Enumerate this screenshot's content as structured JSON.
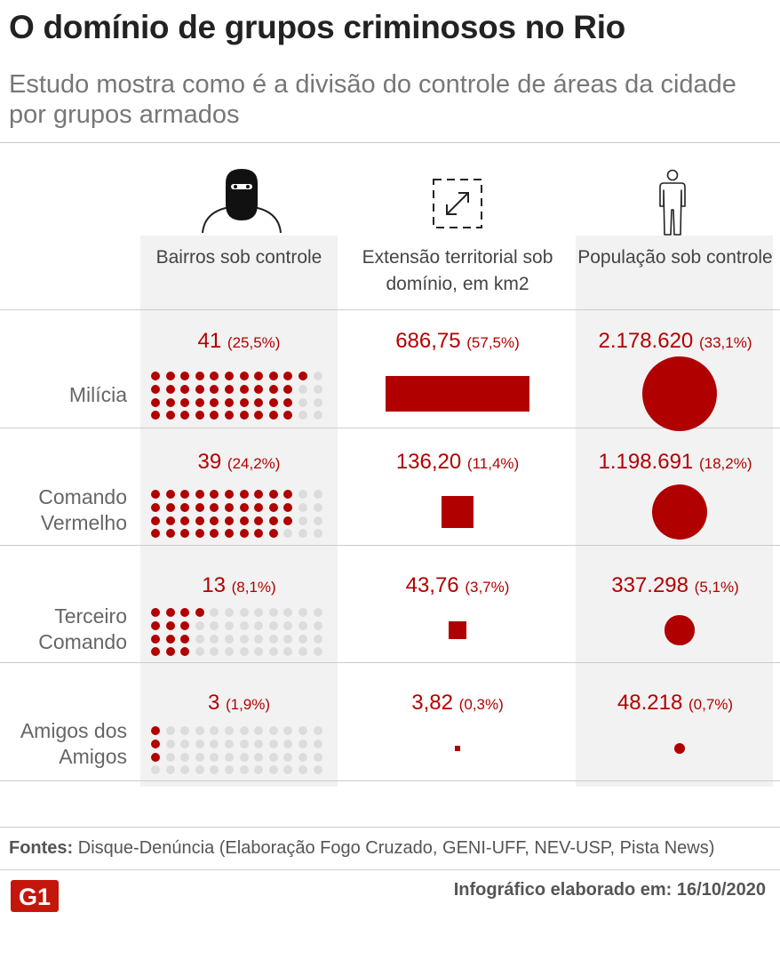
{
  "header": {
    "title": "O domínio de grupos criminosos no Rio",
    "subtitle": "Estudo mostra como é a divisão do controle de áreas da cidade por grupos armados"
  },
  "columns": [
    {
      "icon": "masked-person-icon",
      "label": "Bairros sob controle"
    },
    {
      "icon": "expand-area-icon",
      "label": "Extensão territorial sob domínio, em km2"
    },
    {
      "icon": "person-icon",
      "label": "População sob controle"
    }
  ],
  "colors": {
    "accent": "#b00000",
    "dot_inactive": "#dcdcdc",
    "column_bg": "#f2f2f2"
  },
  "chart_data": {
    "type": "table",
    "title": "O domínio de grupos criminosos no Rio",
    "subtitle": "Estudo mostra como é a divisão do controle de áreas da cidade por grupos armados",
    "dots_total": 48,
    "rows": [
      {
        "name": "Milícia",
        "bairros": 41,
        "bairros_pct": "(25,5%)",
        "km2": 686.75,
        "km2_label": "686,75",
        "km2_pct": "(57,5%)",
        "populacao": 2178620,
        "populacao_label": "2.178.620",
        "populacao_pct": "(33,1%)"
      },
      {
        "name": "Comando Vermelho",
        "bairros": 39,
        "bairros_pct": "(24,2%)",
        "km2": 136.2,
        "km2_label": "136,20",
        "km2_pct": "(11,4%)",
        "populacao": 1198691,
        "populacao_label": "1.198.691",
        "populacao_pct": "(18,2%)"
      },
      {
        "name": "Terceiro Comando",
        "bairros": 13,
        "bairros_pct": "(8,1%)",
        "km2": 43.76,
        "km2_label": "43,76",
        "km2_pct": "(3,7%)",
        "populacao": 337298,
        "populacao_label": "337.298",
        "populacao_pct": "(5,1%)"
      },
      {
        "name": "Amigos dos Amigos",
        "bairros": 3,
        "bairros_pct": "(1,9%)",
        "km2": 3.82,
        "km2_label": "3,82",
        "km2_pct": "(0,3%)",
        "populacao": 48218,
        "populacao_label": "48.218",
        "populacao_pct": "(0,7%)"
      }
    ]
  },
  "footer": {
    "sources_label": "Fontes:",
    "sources_text": "Disque-Denúncia (Elaboração Fogo Cruzado, GENI-UFF, NEV-USP, Pista News)",
    "date_text": "Infográfico elaborado em: 16/10/2020",
    "logo_text": "G1"
  }
}
